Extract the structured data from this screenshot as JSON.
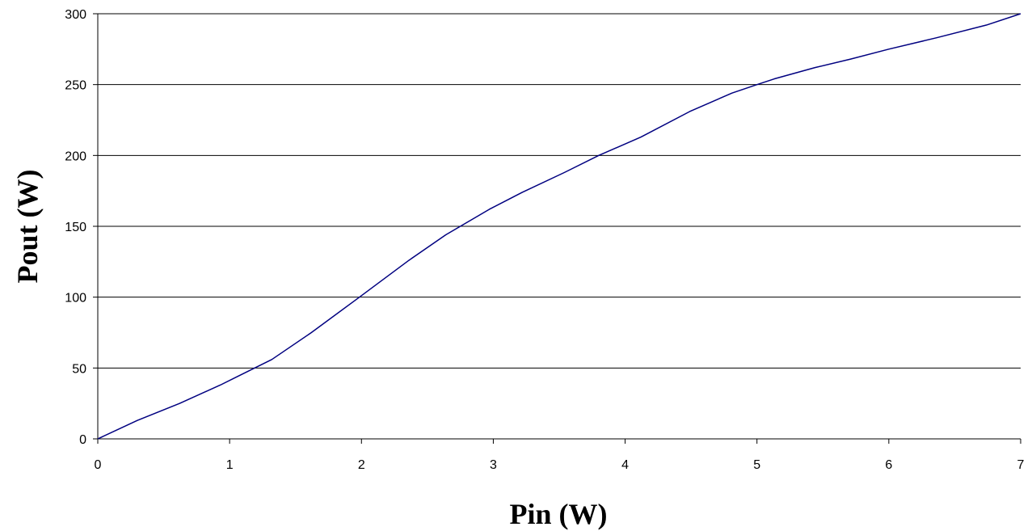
{
  "chart_data": {
    "type": "line",
    "title": "",
    "xlabel": "Pin (W)",
    "ylabel": "Pout (W)",
    "xlim": [
      0,
      7
    ],
    "ylim": [
      0,
      300
    ],
    "x_ticks": [
      "0",
      "1",
      "2",
      "3",
      "4",
      "5",
      "6",
      "7"
    ],
    "y_ticks": [
      "0",
      "50",
      "100",
      "150",
      "200",
      "250",
      "300"
    ],
    "grid": "horizontal",
    "legend": "none",
    "series": [
      {
        "color": "#000080",
        "x": [
          0,
          0.3,
          0.62,
          0.93,
          1.06,
          1.32,
          1.62,
          1.97,
          2.36,
          2.64,
          2.97,
          3.22,
          3.54,
          3.8,
          4.12,
          4.49,
          4.81,
          5.0,
          5.13,
          5.44,
          5.71,
          6.0,
          6.36,
          6.74,
          7.0
        ],
        "y": [
          0,
          13,
          25,
          38,
          44,
          56,
          75,
          99,
          126,
          144,
          162,
          174,
          188,
          200,
          213,
          231,
          244,
          250,
          254,
          262,
          268,
          275,
          283,
          292,
          300
        ]
      }
    ]
  }
}
